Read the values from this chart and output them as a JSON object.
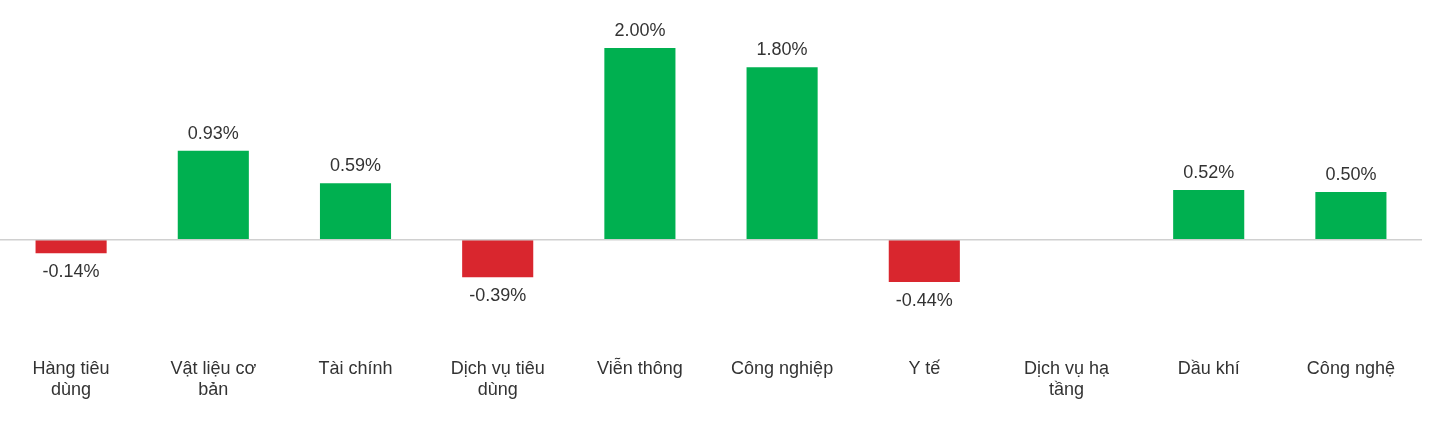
{
  "chart_data": {
    "type": "bar",
    "categories": [
      "Hàng tiêu dùng",
      "Vật liệu cơ bản",
      "Tài chính",
      "Dịch vụ tiêu dùng",
      "Viễn thông",
      "Công nghiệp",
      "Y tế",
      "Dịch vụ hạ tầng",
      "Dầu khí",
      "Công nghệ"
    ],
    "values": [
      -0.14,
      0.93,
      0.59,
      -0.39,
      2.0,
      1.8,
      -0.44,
      null,
      0.52,
      0.5
    ],
    "colors": [
      "#d9262e",
      "#00b050",
      "#00b050",
      "#d9262e",
      "#00b050",
      "#00b050",
      "#d9262e",
      null,
      "#00b050",
      "#00b050"
    ],
    "value_labels": [
      "-0.14%",
      "0.93%",
      "0.59%",
      "-0.39%",
      "2.00%",
      "1.80%",
      "-0.44%",
      null,
      "0.52%",
      "0.50%"
    ],
    "grid": false,
    "legend": false
  }
}
